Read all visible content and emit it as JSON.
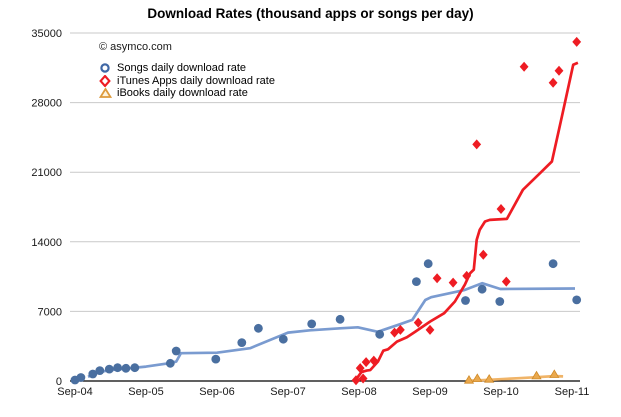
{
  "title": "Download Rates (thousand apps or songs per day)",
  "watermark": "© asymco.com",
  "legend": {
    "position": "top-left",
    "items": [
      {
        "label": "Songs daily download rate",
        "marker": "circle",
        "color": "#3f67a5"
      },
      {
        "label": "iTunes Apps daily download rate",
        "marker": "diamond",
        "color": "#ee1c23"
      },
      {
        "label": "iBooks daily download rate",
        "marker": "triangle",
        "color": "#dd9a3c"
      }
    ]
  },
  "chart_data": {
    "type": "scatter",
    "title": "Download Rates (thousand apps or songs per day)",
    "grid": "horizontal-only",
    "x_axis": {
      "unit": "months since Sep-2004",
      "range": [
        -0.9,
        85.6
      ],
      "ticks": [
        {
          "label": "Sep-04",
          "m": 0
        },
        {
          "label": "Sep-05",
          "m": 12
        },
        {
          "label": "Sep-06",
          "m": 24
        },
        {
          "label": "Sep-07",
          "m": 36
        },
        {
          "label": "Sep-08",
          "m": 48
        },
        {
          "label": "Sep-09",
          "m": 60
        },
        {
          "label": "Sep-10",
          "m": 72
        },
        {
          "label": "Sep-11",
          "m": 84
        }
      ]
    },
    "y_axis": {
      "range": [
        0,
        35000
      ],
      "ticks": [
        0,
        7000,
        14000,
        21000,
        28000,
        35000
      ]
    },
    "series": [
      {
        "name": "Songs daily download rate",
        "marker": "circle",
        "marker_color": "#4a6fa0",
        "line_color": "#7a9bd0",
        "points": [
          [
            0,
            100
          ],
          [
            1,
            350
          ],
          [
            3,
            700
          ],
          [
            4.2,
            1050
          ],
          [
            5.8,
            1200
          ],
          [
            7.2,
            1340
          ],
          [
            8.6,
            1280
          ],
          [
            10.1,
            1340
          ],
          [
            16.1,
            1780
          ],
          [
            17.1,
            3020
          ],
          [
            23.8,
            2200
          ],
          [
            28.2,
            3860
          ],
          [
            31,
            5300
          ],
          [
            35.2,
            4200
          ],
          [
            40,
            5740
          ],
          [
            44.8,
            6210
          ],
          [
            51.5,
            4700
          ],
          [
            57.7,
            10000
          ],
          [
            59.7,
            11800
          ],
          [
            66,
            8100
          ],
          [
            68.8,
            9230
          ],
          [
            71.8,
            8000
          ],
          [
            80.8,
            11800
          ],
          [
            84.8,
            8160
          ]
        ],
        "trend": [
          [
            2.2,
            430
          ],
          [
            4.2,
            900
          ],
          [
            5.9,
            1100
          ],
          [
            12,
            1450
          ],
          [
            16.1,
            1800
          ],
          [
            17.1,
            1950
          ],
          [
            17.9,
            2800
          ],
          [
            24,
            2850
          ],
          [
            29.6,
            3300
          ],
          [
            36,
            4870
          ],
          [
            39.7,
            5100
          ],
          [
            44.8,
            5300
          ],
          [
            47.8,
            5400
          ],
          [
            51.2,
            4950
          ],
          [
            54.9,
            5700
          ],
          [
            57,
            6150
          ],
          [
            59.2,
            8150
          ],
          [
            60.2,
            8430
          ],
          [
            65.9,
            9160
          ],
          [
            68.8,
            9840
          ],
          [
            71.9,
            9250
          ],
          [
            84.5,
            9300
          ]
        ]
      },
      {
        "name": "iTunes Apps daily download rate",
        "marker": "diamond",
        "marker_color": "#ee1c23",
        "line_color": "#ee1c23",
        "points": [
          [
            47.5,
            80
          ],
          [
            48.7,
            250
          ],
          [
            48.2,
            1300
          ],
          [
            49.2,
            1900
          ],
          [
            50.5,
            2050
          ],
          [
            54,
            4870
          ],
          [
            55,
            5140
          ],
          [
            58,
            5870
          ],
          [
            60,
            5140
          ],
          [
            61.2,
            10340
          ],
          [
            63.9,
            9900
          ],
          [
            66.2,
            10570
          ],
          [
            67.9,
            23800
          ],
          [
            69,
            12690
          ],
          [
            72,
            17300
          ],
          [
            72.9,
            10000
          ],
          [
            75.9,
            31600
          ],
          [
            80.8,
            30000
          ],
          [
            81.8,
            31200
          ],
          [
            84.8,
            34100
          ]
        ],
        "trend": [
          [
            47.3,
            0
          ],
          [
            48.4,
            900
          ],
          [
            49.3,
            1050
          ],
          [
            49.9,
            1100
          ],
          [
            51.2,
            1950
          ],
          [
            52.1,
            3050
          ],
          [
            52.9,
            3190
          ],
          [
            54.4,
            3960
          ],
          [
            56.1,
            4400
          ],
          [
            57.5,
            4960
          ],
          [
            60,
            5970
          ],
          [
            62.4,
            6820
          ],
          [
            64.2,
            8000
          ],
          [
            65.9,
            9700
          ],
          [
            66.8,
            10850
          ],
          [
            67.4,
            11200
          ],
          [
            67.9,
            14200
          ],
          [
            68.4,
            15200
          ],
          [
            69.3,
            16040
          ],
          [
            70.1,
            16200
          ],
          [
            73,
            16300
          ],
          [
            75.7,
            19230
          ],
          [
            78.6,
            20900
          ],
          [
            80.6,
            22080
          ],
          [
            82.3,
            26600
          ],
          [
            84.2,
            31800
          ],
          [
            85,
            32000
          ]
        ]
      },
      {
        "name": "iBooks daily download rate",
        "marker": "triangle",
        "marker_color": "#eaa94e",
        "line_color": "#f0b468",
        "points": [
          [
            66.6,
            100
          ],
          [
            68,
            270
          ],
          [
            70,
            200
          ],
          [
            78,
            530
          ],
          [
            81,
            670
          ]
        ],
        "trend": [
          [
            66.8,
            30
          ],
          [
            70,
            120
          ],
          [
            75,
            280
          ],
          [
            78,
            380
          ],
          [
            81,
            490
          ],
          [
            82.5,
            460
          ]
        ]
      }
    ]
  },
  "colors": {
    "background": "#ffffff",
    "gridline": "#c9c9c9",
    "axis": "#000000",
    "songs_point": "#4a6fa0",
    "songs_line": "#7a9bd0",
    "apps": "#ee1c23",
    "ibooks_point": "#eaa94e",
    "ibooks_line": "#f0b468"
  }
}
